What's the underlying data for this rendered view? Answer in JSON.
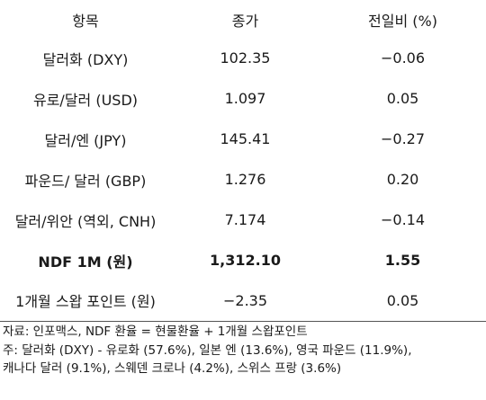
{
  "table": {
    "headers": [
      "항목",
      "종가",
      "전일비 (%)"
    ],
    "rows": [
      {
        "item": "달러화 (DXY)",
        "price": "102.35",
        "change": "−0.06",
        "bold": false
      },
      {
        "item": "유로/달러 (USD)",
        "price": "1.097",
        "change": "0.05",
        "bold": false
      },
      {
        "item": "달러/엔 (JPY)",
        "price": "145.41",
        "change": "−0.27",
        "bold": false
      },
      {
        "item": "파운드/ 달러 (GBP)",
        "price": "1.276",
        "change": "0.20",
        "bold": false
      },
      {
        "item": "달러/위안 (역외, CNH)",
        "price": "7.174",
        "change": "−0.14",
        "bold": false
      },
      {
        "item": "NDF 1M (원)",
        "price": "1,312.10",
        "change": "1.55",
        "bold": true
      },
      {
        "item": "1개월 스왑 포인트 (원)",
        "price": "−2.35",
        "change": "0.05",
        "bold": false
      }
    ]
  },
  "notes": {
    "source": "자료: 인포맥스, NDF 환율 = 현물환율 + 1개월 스왑포인트",
    "footnote_line1": "주: 달러화 (DXY) - 유로화 (57.6%), 일본 엔 (13.6%), 영국 파운드 (11.9%),",
    "footnote_line2": "캐나다 달러 (9.1%), 스웨덴 크로나 (4.2%), 스위스 프랑 (3.6%)"
  }
}
